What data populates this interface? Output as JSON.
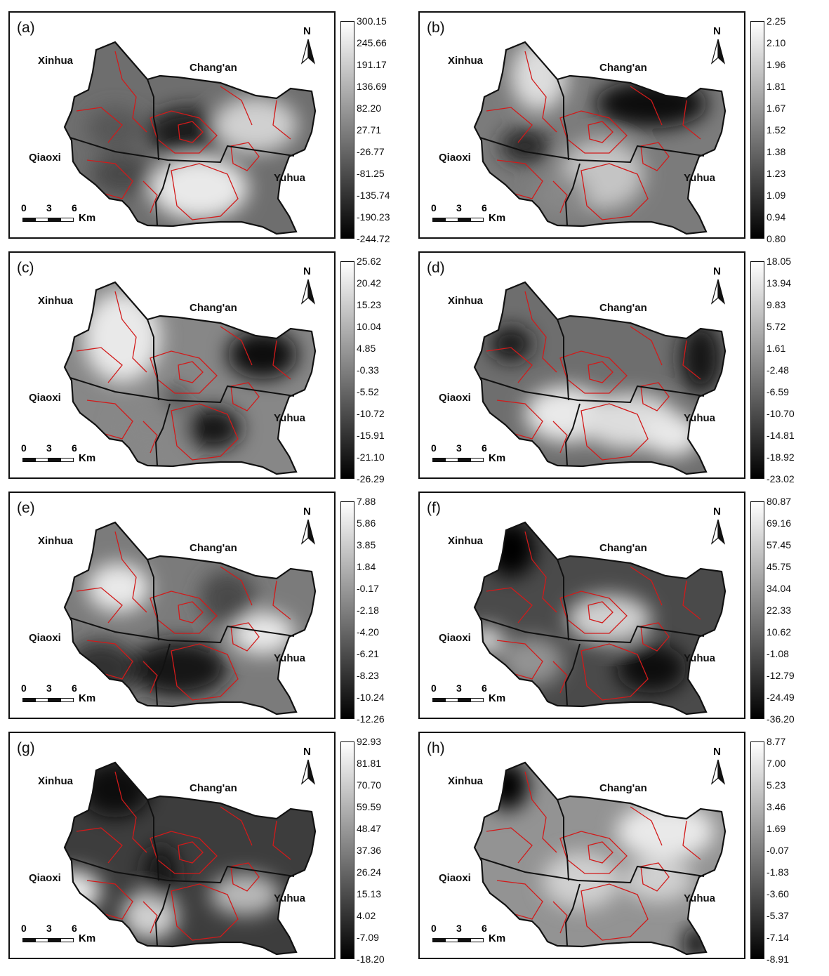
{
  "districts": {
    "xinhua": "Xinhua",
    "changan": "Chang'an",
    "qiaoxi": "Qiaoxi",
    "yuhua": "Yuhua"
  },
  "north_arrow": {
    "letter": "N",
    "icon": "north-arrow-icon"
  },
  "scale_bar": {
    "ticks": [
      "0",
      "3",
      "6"
    ],
    "unit": "Km"
  },
  "panels": [
    {
      "label": "(a)",
      "legend": [
        "300.15",
        "245.66",
        "191.17",
        "136.69",
        "82.20",
        "27.71",
        "-26.77",
        "-81.25",
        "-135.74",
        "-190.23",
        "-244.72"
      ]
    },
    {
      "label": "(b)",
      "legend": [
        "2.25",
        "2.10",
        "1.96",
        "1.81",
        "1.67",
        "1.52",
        "1.38",
        "1.23",
        "1.09",
        "0.94",
        "0.80"
      ]
    },
    {
      "label": "(c)",
      "legend": [
        "25.62",
        "20.42",
        "15.23",
        "10.04",
        "4.85",
        "-0.33",
        "-5.52",
        "-10.72",
        "-15.91",
        "-21.10",
        "-26.29"
      ]
    },
    {
      "label": "(d)",
      "legend": [
        "18.05",
        "13.94",
        "9.83",
        "5.72",
        "1.61",
        "-2.48",
        "-6.59",
        "-10.70",
        "-14.81",
        "-18.92",
        "-23.02"
      ]
    },
    {
      "label": "(e)",
      "legend": [
        "7.88",
        "5.86",
        "3.85",
        "1.84",
        "-0.17",
        "-2.18",
        "-4.20",
        "-6.21",
        "-8.23",
        "-10.24",
        "-12.26"
      ]
    },
    {
      "label": "(f)",
      "legend": [
        "80.87",
        "69.16",
        "57.45",
        "45.75",
        "34.04",
        "22.33",
        "10.62",
        "-1.08",
        "-12.79",
        "-24.49",
        "-36.20"
      ]
    },
    {
      "label": "(g)",
      "legend": [
        "92.93",
        "81.81",
        "70.70",
        "59.59",
        "48.47",
        "37.36",
        "26.24",
        "15.13",
        "4.02",
        "-7.09",
        "-18.20"
      ]
    },
    {
      "label": "(h)",
      "legend": [
        "8.77",
        "7.00",
        "5.23",
        "3.46",
        "1.69",
        "-0.07",
        "-1.83",
        "-3.60",
        "-5.37",
        "-7.14",
        "-8.91"
      ]
    }
  ]
}
